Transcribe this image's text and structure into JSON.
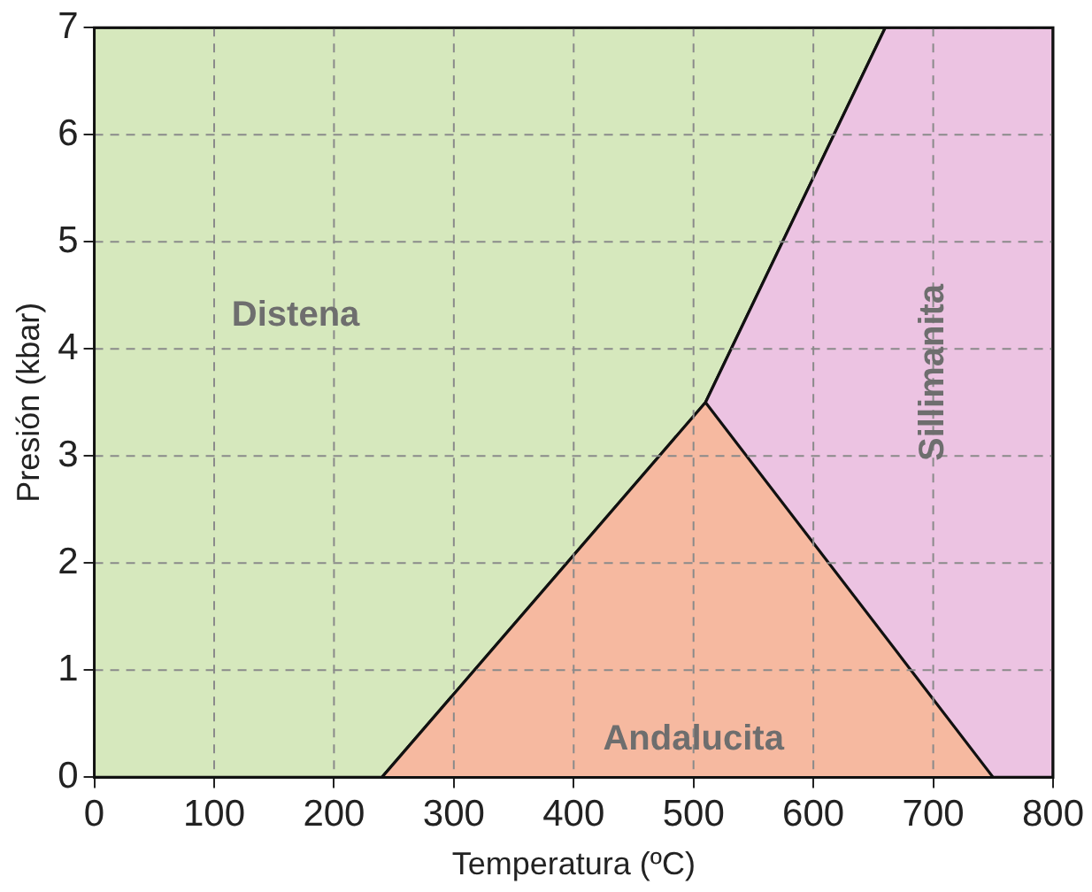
{
  "chart_data": {
    "type": "area",
    "xlabel": "Temperatura (ºC)",
    "ylabel": "Presión (kbar)",
    "xlim": [
      0,
      800
    ],
    "xticks": [
      0,
      100,
      200,
      300,
      400,
      500,
      600,
      700,
      800
    ],
    "ylim": [
      0,
      7
    ],
    "yticks": [
      0,
      1,
      2,
      3,
      4,
      5,
      6,
      7
    ],
    "grid": true,
    "legend": false,
    "series": [
      {
        "color": "#d6e8bd",
        "x": [
          0,
          240,
          510,
          660,
          0
        ],
        "values": [
          0,
          0,
          3.5,
          7,
          7
        ]
      },
      {
        "color": "#ecc3e2",
        "x": [
          510,
          660,
          800,
          800,
          750
        ],
        "values": [
          3.5,
          7,
          7,
          0,
          0
        ]
      },
      {
        "color": "#f6b9a0",
        "x": [
          240,
          510,
          750
        ],
        "values": [
          0,
          3.5,
          0
        ]
      }
    ],
    "annotations": [
      "Distena",
      "Andalucita",
      "Sillimanita"
    ]
  }
}
